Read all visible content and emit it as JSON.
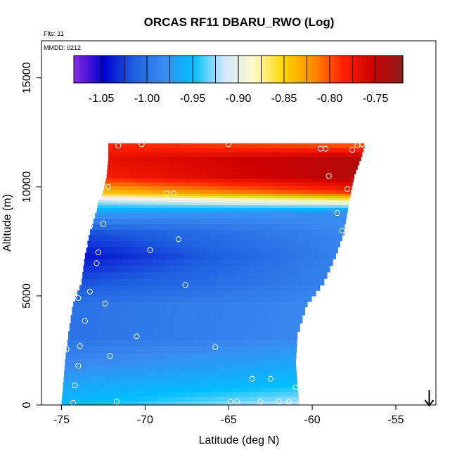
{
  "chart_data": {
    "type": "heatmap",
    "title": "ORCAS RF11 DBARU_RWO (Log)",
    "notes": [
      "Flts: 11",
      "MMDD: 0212"
    ],
    "xlabel": "Latitude (deg N)",
    "ylabel": "Altitude (m)",
    "xlim": [
      -76.2,
      -52.6
    ],
    "ylim": [
      0,
      16700
    ],
    "xticks": [
      -75,
      -70,
      -65,
      -60,
      -55
    ],
    "xtick_labels": [
      "-75",
      "-70",
      "-65",
      "-60",
      "-55"
    ],
    "yticks": [
      0,
      5000,
      10000,
      15000
    ],
    "ytick_labels": [
      "0",
      "5000",
      "10000",
      "15000"
    ],
    "colorbar": {
      "min": -1.08,
      "max": -0.72,
      "ticks": [
        -1.05,
        -1.0,
        -0.95,
        -0.9,
        -0.85,
        -0.8,
        -0.75
      ],
      "tick_labels": [
        "-1.05",
        "-1.00",
        "-0.95",
        "-0.90",
        "-0.85",
        "-0.80",
        "-0.75"
      ],
      "colors": [
        "#8a2be2",
        "#0000cd",
        "#1e5fe0",
        "#3a8cf0",
        "#00bfff",
        "#cfe8ff",
        "#fffacd",
        "#ffd700",
        "#ff8c00",
        "#ff2000",
        "#cc0000",
        "#8b1a1a"
      ]
    },
    "field_rows": [
      {
        "alt": 0,
        "lat_left": -75.0,
        "lat_right": -60.8,
        "v_left": -0.955,
        "v_right": -0.92
      },
      {
        "alt": 800,
        "lat_left": -74.9,
        "lat_right": -60.9,
        "v_left": -0.965,
        "v_right": -0.95
      },
      {
        "alt": 1800,
        "lat_left": -74.8,
        "lat_right": -61.0,
        "v_left": -0.985,
        "v_right": -0.965
      },
      {
        "alt": 3000,
        "lat_left": -74.6,
        "lat_right": -60.9,
        "v_left": -1.0,
        "v_right": -0.985
      },
      {
        "alt": 4500,
        "lat_left": -74.3,
        "lat_right": -60.3,
        "v_left": -1.0,
        "v_right": -0.985
      },
      {
        "alt": 5500,
        "lat_left": -73.8,
        "lat_right": -59.3,
        "v_left": -1.02,
        "v_right": -0.99
      },
      {
        "alt": 6700,
        "lat_left": -73.6,
        "lat_right": -58.6,
        "v_left": -1.04,
        "v_right": -0.99
      },
      {
        "alt": 7800,
        "lat_left": -73.3,
        "lat_right": -58.1,
        "v_left": -1.02,
        "v_right": -0.985
      },
      {
        "alt": 8800,
        "lat_left": -72.9,
        "lat_right": -57.9,
        "v_left": -0.965,
        "v_right": -0.98
      },
      {
        "alt": 9300,
        "lat_left": -72.8,
        "lat_right": -57.8,
        "v_left": -0.92,
        "v_right": -0.88
      },
      {
        "alt": 9700,
        "lat_left": -72.5,
        "lat_right": -57.7,
        "v_left": -0.84,
        "v_right": -0.79
      },
      {
        "alt": 10400,
        "lat_left": -72.3,
        "lat_right": -57.5,
        "v_left": -0.78,
        "v_right": -0.74
      },
      {
        "alt": 11200,
        "lat_left": -72.2,
        "lat_right": -57.1,
        "v_left": -0.77,
        "v_right": -0.74
      },
      {
        "alt": 12000,
        "lat_left": -72.2,
        "lat_right": -56.8,
        "v_left": -0.79,
        "v_right": -0.82
      }
    ],
    "points": [
      {
        "lat": -74.3,
        "alt": 100
      },
      {
        "lat": -71.7,
        "alt": 150
      },
      {
        "lat": -64.9,
        "alt": 150
      },
      {
        "lat": -64.5,
        "alt": 150
      },
      {
        "lat": -63.1,
        "alt": 150
      },
      {
        "lat": -62.0,
        "alt": 150
      },
      {
        "lat": -61.4,
        "alt": 150
      },
      {
        "lat": -74.2,
        "alt": 900
      },
      {
        "lat": -63.6,
        "alt": 1200
      },
      {
        "lat": -62.5,
        "alt": 1200
      },
      {
        "lat": -61.0,
        "alt": 800
      },
      {
        "lat": -74.0,
        "alt": 1800
      },
      {
        "lat": -72.1,
        "alt": 2250
      },
      {
        "lat": -73.9,
        "alt": 2700
      },
      {
        "lat": -70.5,
        "alt": 3150
      },
      {
        "lat": -65.8,
        "alt": 2650
      },
      {
        "lat": -74.7,
        "alt": 2550
      },
      {
        "lat": -73.6,
        "alt": 3850
      },
      {
        "lat": -72.4,
        "alt": 4650
      },
      {
        "lat": -74.0,
        "alt": 4900
      },
      {
        "lat": -73.3,
        "alt": 5200
      },
      {
        "lat": -67.6,
        "alt": 5500
      },
      {
        "lat": -72.9,
        "alt": 6500
      },
      {
        "lat": -72.8,
        "alt": 7000
      },
      {
        "lat": -69.7,
        "alt": 7100
      },
      {
        "lat": -68.0,
        "alt": 7600
      },
      {
        "lat": -73.6,
        "alt": 7300
      },
      {
        "lat": -73.3,
        "alt": 8200
      },
      {
        "lat": -72.5,
        "alt": 8300
      },
      {
        "lat": -57.9,
        "alt": 8200
      },
      {
        "lat": -58.2,
        "alt": 8000
      },
      {
        "lat": -58.5,
        "alt": 8800
      },
      {
        "lat": -68.3,
        "alt": 9700
      },
      {
        "lat": -68.7,
        "alt": 9700
      },
      {
        "lat": -72.2,
        "alt": 10000
      },
      {
        "lat": -57.9,
        "alt": 9900
      },
      {
        "lat": -59.0,
        "alt": 10500
      },
      {
        "lat": -71.6,
        "alt": 11900
      },
      {
        "lat": -70.2,
        "alt": 11950
      },
      {
        "lat": -65.0,
        "alt": 11950
      },
      {
        "lat": -59.5,
        "alt": 11750
      },
      {
        "lat": -59.2,
        "alt": 11750
      },
      {
        "lat": -57.6,
        "alt": 11700
      },
      {
        "lat": -57.3,
        "alt": 11900
      },
      {
        "lat": -57.0,
        "alt": 11950
      },
      {
        "lat": -56.8,
        "alt": 12200
      }
    ],
    "arrow": {
      "lat": -53.0,
      "direction": "down"
    },
    "grid": false,
    "legend": "top"
  }
}
